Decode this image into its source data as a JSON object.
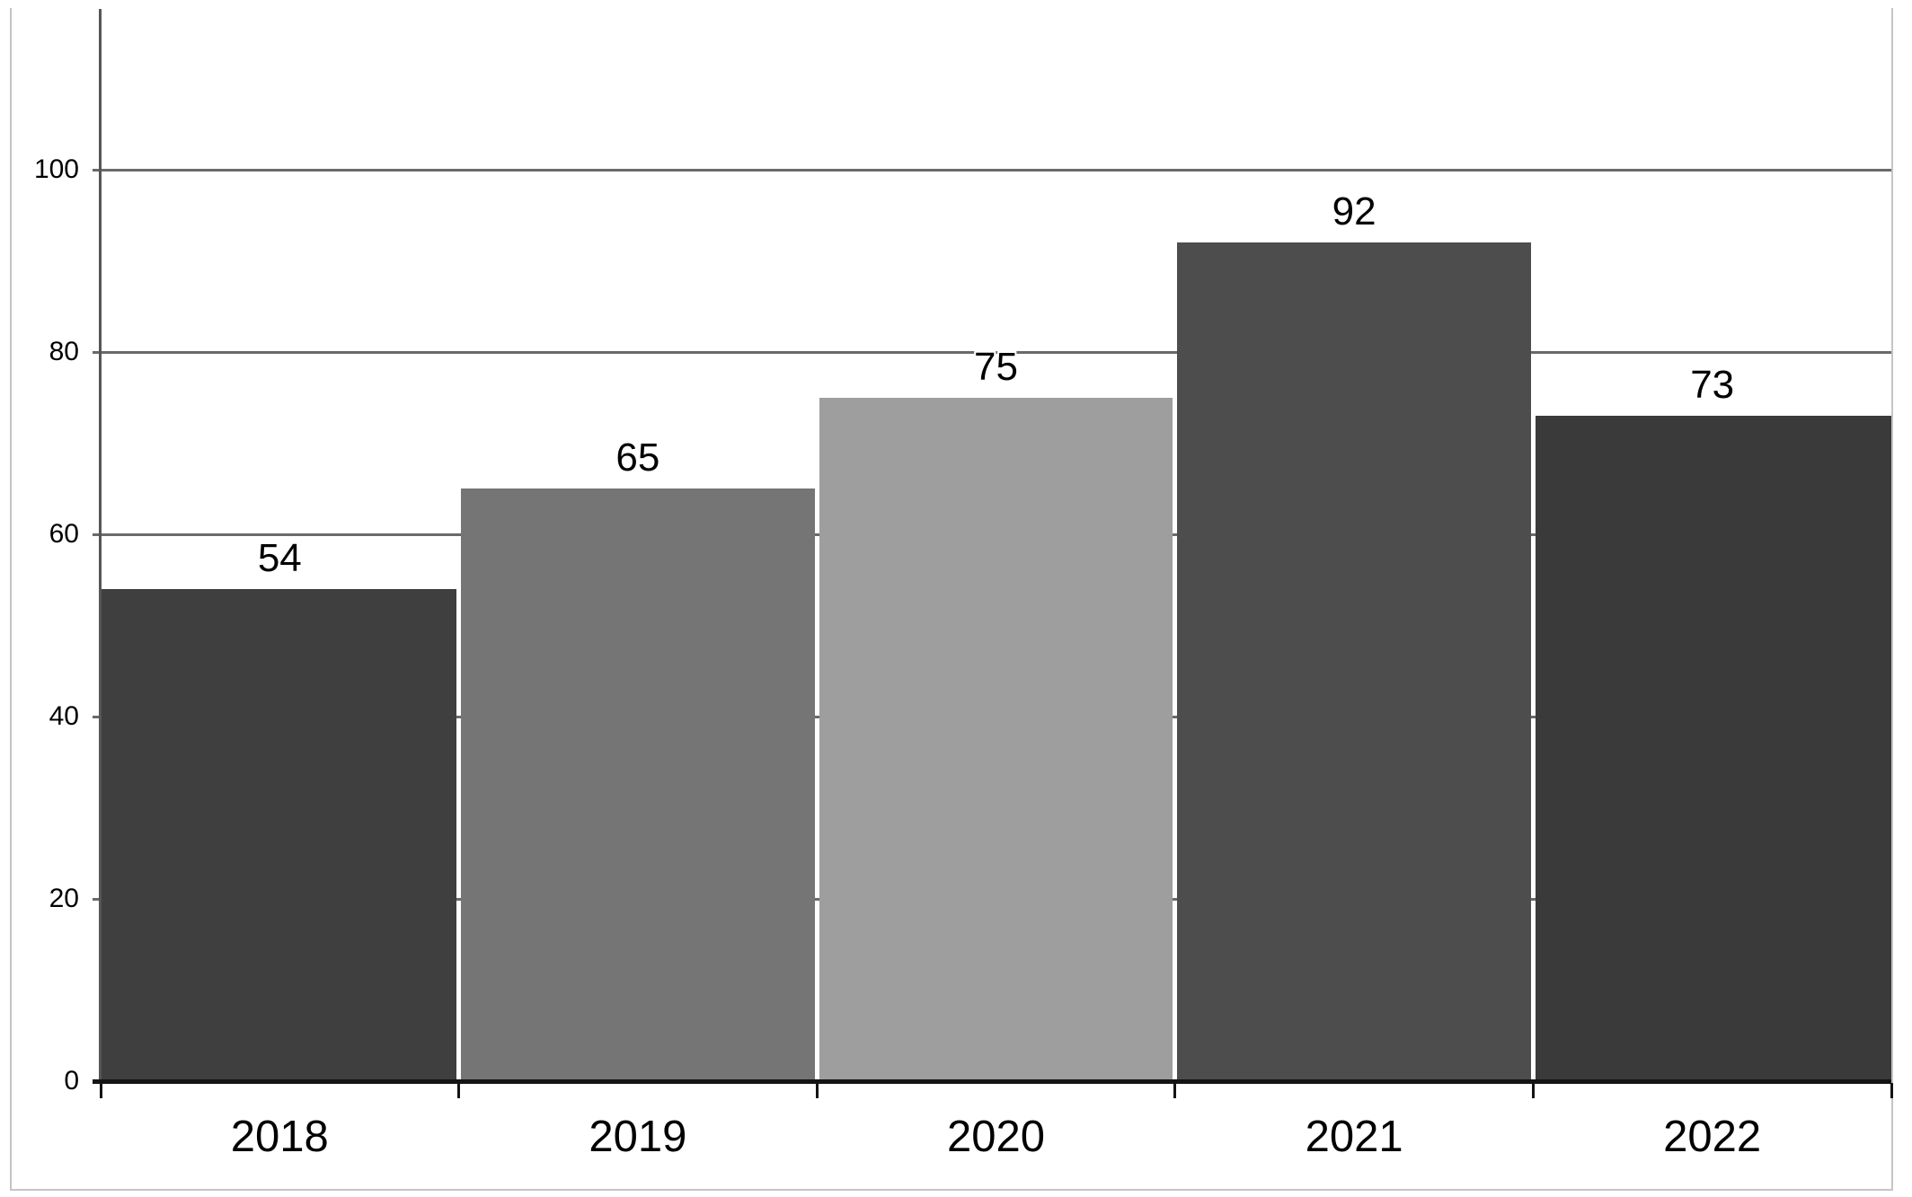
{
  "chart_data": {
    "type": "bar",
    "title": "",
    "categories": [
      "2018",
      "2019",
      "2020",
      "2021",
      "2022"
    ],
    "values": [
      54,
      65,
      75,
      92,
      73
    ],
    "data_labels": [
      "54",
      "65",
      "75",
      "92",
      "73"
    ],
    "bar_colors": [
      "#3f3f3f",
      "#757575",
      "#9e9e9e",
      "#4d4d4d",
      "#3a3a3a"
    ],
    "ylim": [
      0,
      100
    ],
    "yticks": [
      0,
      20,
      40,
      60,
      80,
      100
    ],
    "ytick_labels": [
      "0",
      "20",
      "40",
      "60",
      "80",
      "100"
    ],
    "grid": "horizontal",
    "legend": "none",
    "colors": {
      "gridline": "#6a6a6a",
      "y_axis": "#565656",
      "baseline": "#141414",
      "frame_border": "#c5c5c5",
      "text": "#000000",
      "background": "#ffffff"
    }
  }
}
